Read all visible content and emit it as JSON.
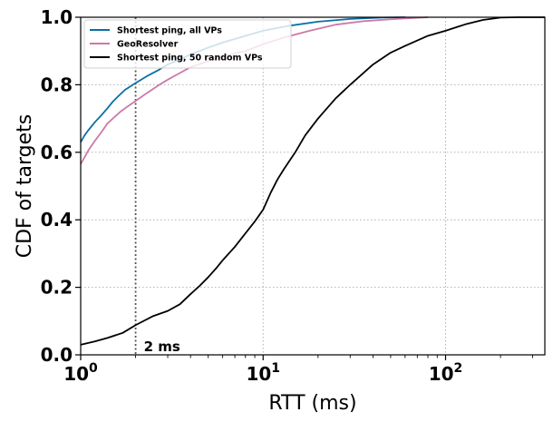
{
  "chart_data": {
    "type": "line",
    "xlabel": "RTT (ms)",
    "ylabel": "CDF of targets",
    "xscale": "log",
    "xlim": [
      1,
      350
    ],
    "ylim": [
      0,
      1
    ],
    "grid": true,
    "legend_position": "top-left",
    "x_ticks": [
      {
        "value": 1,
        "base": "10",
        "exp": "0"
      },
      {
        "value": 10,
        "base": "10",
        "exp": "1"
      },
      {
        "value": 100,
        "base": "10",
        "exp": "2"
      }
    ],
    "y_ticks": [
      {
        "value": 0.0,
        "label": "0.0"
      },
      {
        "value": 0.2,
        "label": "0.2"
      },
      {
        "value": 0.4,
        "label": "0.4"
      },
      {
        "value": 0.6,
        "label": "0.6"
      },
      {
        "value": 0.8,
        "label": "0.8"
      },
      {
        "value": 1.0,
        "label": "1.0"
      }
    ],
    "annotations": [
      {
        "type": "vline",
        "x": 2,
        "label": "2 ms",
        "color": "#555555"
      }
    ],
    "series": [
      {
        "name": "Shortest ping, all VPs",
        "color": "#0a6fa6",
        "points": [
          [
            1.0,
            0.63
          ],
          [
            1.05,
            0.65
          ],
          [
            1.1,
            0.665
          ],
          [
            1.2,
            0.69
          ],
          [
            1.3,
            0.71
          ],
          [
            1.4,
            0.73
          ],
          [
            1.5,
            0.75
          ],
          [
            1.6,
            0.765
          ],
          [
            1.75,
            0.785
          ],
          [
            2.0,
            0.805
          ],
          [
            2.3,
            0.825
          ],
          [
            2.7,
            0.845
          ],
          [
            3.0,
            0.86
          ],
          [
            3.5,
            0.875
          ],
          [
            4.0,
            0.89
          ],
          [
            5.0,
            0.91
          ],
          [
            6.0,
            0.925
          ],
          [
            8.0,
            0.945
          ],
          [
            10.0,
            0.96
          ],
          [
            14.0,
            0.975
          ],
          [
            20.0,
            0.987
          ],
          [
            30.0,
            0.995
          ],
          [
            45.0,
            0.999
          ],
          [
            60.0,
            1.0
          ]
        ]
      },
      {
        "name": "GeoResolver",
        "color": "#cc79a7",
        "points": [
          [
            1.0,
            0.565
          ],
          [
            1.05,
            0.585
          ],
          [
            1.1,
            0.605
          ],
          [
            1.2,
            0.635
          ],
          [
            1.3,
            0.66
          ],
          [
            1.4,
            0.685
          ],
          [
            1.5,
            0.7
          ],
          [
            1.65,
            0.72
          ],
          [
            1.8,
            0.735
          ],
          [
            2.0,
            0.752
          ],
          [
            2.3,
            0.775
          ],
          [
            2.7,
            0.8
          ],
          [
            3.0,
            0.815
          ],
          [
            3.5,
            0.835
          ],
          [
            4.0,
            0.852
          ],
          [
            5.0,
            0.87
          ],
          [
            6.0,
            0.885
          ],
          [
            8.0,
            0.9
          ],
          [
            10.0,
            0.92
          ],
          [
            13.0,
            0.94
          ],
          [
            18.0,
            0.96
          ],
          [
            25.0,
            0.978
          ],
          [
            35.0,
            0.988
          ],
          [
            50.0,
            0.994
          ],
          [
            80.0,
            1.0
          ]
        ]
      },
      {
        "name": "Shortest ping, 50 random VPs",
        "color": "#000000",
        "points": [
          [
            1.0,
            0.03
          ],
          [
            1.2,
            0.04
          ],
          [
            1.4,
            0.05
          ],
          [
            1.7,
            0.065
          ],
          [
            2.0,
            0.088
          ],
          [
            2.5,
            0.115
          ],
          [
            3.0,
            0.13
          ],
          [
            3.5,
            0.15
          ],
          [
            4.0,
            0.18
          ],
          [
            4.5,
            0.205
          ],
          [
            5.0,
            0.23
          ],
          [
            5.5,
            0.255
          ],
          [
            6.0,
            0.28
          ],
          [
            7.0,
            0.32
          ],
          [
            8.0,
            0.36
          ],
          [
            9.0,
            0.395
          ],
          [
            10.0,
            0.43
          ],
          [
            11.0,
            0.48
          ],
          [
            12.0,
            0.52
          ],
          [
            13.0,
            0.55
          ],
          [
            15.0,
            0.6
          ],
          [
            17.0,
            0.65
          ],
          [
            20.0,
            0.7
          ],
          [
            25.0,
            0.76
          ],
          [
            30.0,
            0.8
          ],
          [
            40.0,
            0.86
          ],
          [
            50.0,
            0.895
          ],
          [
            60.0,
            0.915
          ],
          [
            80.0,
            0.945
          ],
          [
            100.0,
            0.96
          ],
          [
            130.0,
            0.98
          ],
          [
            160.0,
            0.992
          ],
          [
            200.0,
            0.999
          ],
          [
            250.0,
            1.0
          ],
          [
            350.0,
            1.0
          ]
        ]
      }
    ]
  }
}
